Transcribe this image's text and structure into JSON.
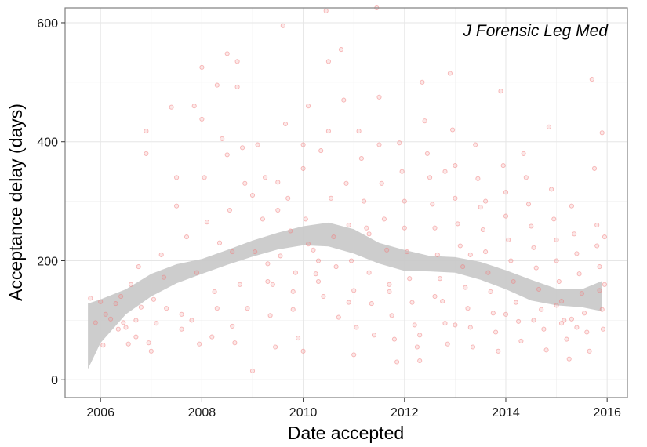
{
  "chart_data": {
    "type": "scatter",
    "annotation": "J Forensic Leg Med",
    "xlabel": "Date accepted",
    "ylabel": "Acceptance delay (days)",
    "xlim": [
      2005.3,
      2016.4
    ],
    "ylim": [
      -30,
      625
    ],
    "x_ticks": [
      2006,
      2008,
      2010,
      2012,
      2014,
      2016
    ],
    "y_ticks": [
      0,
      200,
      400,
      600
    ],
    "grid": true,
    "point_color": "#f08080",
    "smooth_fill": "#c8c8c8",
    "smooth_band": {
      "x": [
        2005.75,
        2006.0,
        2006.5,
        2007.0,
        2007.5,
        2008.0,
        2008.5,
        2009.0,
        2009.5,
        2010.0,
        2010.5,
        2011.0,
        2011.5,
        2012.0,
        2012.5,
        2013.0,
        2013.5,
        2014.0,
        2014.5,
        2015.0,
        2015.5,
        2015.9
      ],
      "lower": [
        18,
        62,
        110,
        140,
        162,
        178,
        193,
        207,
        219,
        226,
        224,
        212,
        195,
        183,
        182,
        180,
        168,
        152,
        133,
        125,
        122,
        115
      ],
      "upper": [
        128,
        135,
        152,
        178,
        194,
        203,
        218,
        234,
        247,
        258,
        264,
        253,
        230,
        218,
        208,
        206,
        198,
        184,
        168,
        153,
        152,
        166
      ]
    },
    "points": [
      [
        2005.8,
        137
      ],
      [
        2005.9,
        96
      ],
      [
        2006.0,
        131
      ],
      [
        2006.05,
        58
      ],
      [
        2006.1,
        110
      ],
      [
        2006.2,
        102
      ],
      [
        2006.3,
        128
      ],
      [
        2006.35,
        85
      ],
      [
        2006.4,
        140
      ],
      [
        2006.45,
        96
      ],
      [
        2006.5,
        88
      ],
      [
        2006.55,
        60
      ],
      [
        2006.6,
        160
      ],
      [
        2006.7,
        72
      ],
      [
        2006.75,
        190
      ],
      [
        2006.8,
        122
      ],
      [
        2006.9,
        418
      ],
      [
        2006.9,
        380
      ],
      [
        2006.95,
        62
      ],
      [
        2007.0,
        48
      ],
      [
        2007.05,
        135
      ],
      [
        2007.1,
        95
      ],
      [
        2007.2,
        210
      ],
      [
        2007.25,
        172
      ],
      [
        2007.3,
        120
      ],
      [
        2007.4,
        458
      ],
      [
        2007.5,
        340
      ],
      [
        2007.5,
        292
      ],
      [
        2007.6,
        85
      ],
      [
        2007.7,
        240
      ],
      [
        2007.8,
        100
      ],
      [
        2007.85,
        460
      ],
      [
        2007.9,
        180
      ],
      [
        2008.0,
        525
      ],
      [
        2008.0,
        438
      ],
      [
        2008.05,
        340
      ],
      [
        2008.1,
        265
      ],
      [
        2008.2,
        72
      ],
      [
        2008.25,
        148
      ],
      [
        2008.3,
        495
      ],
      [
        2008.35,
        230
      ],
      [
        2008.4,
        405
      ],
      [
        2008.5,
        548
      ],
      [
        2008.5,
        378
      ],
      [
        2008.55,
        285
      ],
      [
        2008.6,
        215
      ],
      [
        2008.65,
        62
      ],
      [
        2008.7,
        535
      ],
      [
        2008.7,
        492
      ],
      [
        2008.75,
        160
      ],
      [
        2008.8,
        390
      ],
      [
        2008.85,
        330
      ],
      [
        2008.9,
        120
      ],
      [
        2009.0,
        310
      ],
      [
        2009.05,
        215
      ],
      [
        2009.1,
        395
      ],
      [
        2009.2,
        270
      ],
      [
        2009.25,
        340
      ],
      [
        2009.3,
        195
      ],
      [
        2009.35,
        108
      ],
      [
        2009.4,
        160
      ],
      [
        2009.45,
        55
      ],
      [
        2009.5,
        332
      ],
      [
        2009.5,
        285
      ],
      [
        2009.55,
        208
      ],
      [
        2009.6,
        595
      ],
      [
        2009.65,
        430
      ],
      [
        2009.7,
        305
      ],
      [
        2009.75,
        250
      ],
      [
        2009.8,
        118
      ],
      [
        2009.85,
        180
      ],
      [
        2009.9,
        70
      ],
      [
        2010.0,
        395
      ],
      [
        2010.0,
        355
      ],
      [
        2010.05,
        270
      ],
      [
        2010.1,
        228
      ],
      [
        2010.1,
        460
      ],
      [
        2010.2,
        218
      ],
      [
        2010.25,
        178
      ],
      [
        2010.3,
        165
      ],
      [
        2010.35,
        385
      ],
      [
        2010.4,
        140
      ],
      [
        2010.45,
        620
      ],
      [
        2010.5,
        535
      ],
      [
        2010.5,
        418
      ],
      [
        2010.55,
        305
      ],
      [
        2010.6,
        240
      ],
      [
        2010.65,
        190
      ],
      [
        2010.7,
        105
      ],
      [
        2010.75,
        555
      ],
      [
        2010.8,
        470
      ],
      [
        2010.85,
        330
      ],
      [
        2010.9,
        260
      ],
      [
        2010.95,
        200
      ],
      [
        2011.0,
        150
      ],
      [
        2011.05,
        88
      ],
      [
        2011.1,
        418
      ],
      [
        2011.15,
        372
      ],
      [
        2011.2,
        300
      ],
      [
        2011.25,
        255
      ],
      [
        2011.3,
        180
      ],
      [
        2011.35,
        128
      ],
      [
        2011.4,
        75
      ],
      [
        2011.45,
        625
      ],
      [
        2011.5,
        475
      ],
      [
        2011.5,
        395
      ],
      [
        2011.55,
        330
      ],
      [
        2011.6,
        270
      ],
      [
        2011.65,
        218
      ],
      [
        2011.7,
        160
      ],
      [
        2011.75,
        108
      ],
      [
        2011.8,
        68
      ],
      [
        2011.85,
        30
      ],
      [
        2011.9,
        398
      ],
      [
        2011.95,
        350
      ],
      [
        2012.0,
        300
      ],
      [
        2012.0,
        255
      ],
      [
        2012.05,
        215
      ],
      [
        2012.1,
        170
      ],
      [
        2012.15,
        130
      ],
      [
        2012.2,
        92
      ],
      [
        2012.25,
        55
      ],
      [
        2012.3,
        32
      ],
      [
        2012.35,
        500
      ],
      [
        2012.4,
        435
      ],
      [
        2012.45,
        380
      ],
      [
        2012.5,
        340
      ],
      [
        2012.55,
        295
      ],
      [
        2012.6,
        255
      ],
      [
        2012.65,
        210
      ],
      [
        2012.7,
        170
      ],
      [
        2012.75,
        132
      ],
      [
        2012.8,
        95
      ],
      [
        2012.85,
        60
      ],
      [
        2012.9,
        515
      ],
      [
        2012.95,
        420
      ],
      [
        2013.0,
        360
      ],
      [
        2013.0,
        305
      ],
      [
        2013.05,
        262
      ],
      [
        2013.1,
        225
      ],
      [
        2013.15,
        190
      ],
      [
        2013.2,
        155
      ],
      [
        2013.25,
        120
      ],
      [
        2013.3,
        88
      ],
      [
        2013.35,
        55
      ],
      [
        2013.4,
        395
      ],
      [
        2013.45,
        338
      ],
      [
        2013.5,
        290
      ],
      [
        2013.55,
        252
      ],
      [
        2013.6,
        215
      ],
      [
        2013.65,
        180
      ],
      [
        2013.7,
        148
      ],
      [
        2013.75,
        112
      ],
      [
        2013.8,
        80
      ],
      [
        2013.85,
        48
      ],
      [
        2013.9,
        485
      ],
      [
        2013.95,
        360
      ],
      [
        2014.0,
        315
      ],
      [
        2014.0,
        275
      ],
      [
        2014.05,
        235
      ],
      [
        2014.1,
        200
      ],
      [
        2014.15,
        165
      ],
      [
        2014.2,
        130
      ],
      [
        2014.25,
        98
      ],
      [
        2014.3,
        65
      ],
      [
        2014.35,
        380
      ],
      [
        2014.4,
        340
      ],
      [
        2014.45,
        295
      ],
      [
        2014.5,
        258
      ],
      [
        2014.55,
        222
      ],
      [
        2014.6,
        188
      ],
      [
        2014.65,
        152
      ],
      [
        2014.7,
        118
      ],
      [
        2014.75,
        85
      ],
      [
        2014.8,
        50
      ],
      [
        2014.85,
        425
      ],
      [
        2014.9,
        320
      ],
      [
        2014.95,
        270
      ],
      [
        2015.0,
        235
      ],
      [
        2015.0,
        200
      ],
      [
        2015.05,
        165
      ],
      [
        2015.1,
        132
      ],
      [
        2015.15,
        100
      ],
      [
        2015.2,
        68
      ],
      [
        2015.25,
        35
      ],
      [
        2015.3,
        292
      ],
      [
        2015.35,
        245
      ],
      [
        2015.4,
        212
      ],
      [
        2015.45,
        178
      ],
      [
        2015.5,
        145
      ],
      [
        2015.55,
        112
      ],
      [
        2015.6,
        80
      ],
      [
        2015.65,
        48
      ],
      [
        2015.7,
        505
      ],
      [
        2015.75,
        355
      ],
      [
        2015.8,
        260
      ],
      [
        2015.8,
        225
      ],
      [
        2015.85,
        190
      ],
      [
        2015.85,
        150
      ],
      [
        2015.9,
        118
      ],
      [
        2015.9,
        415
      ],
      [
        2015.92,
        85
      ],
      [
        2015.95,
        240
      ],
      [
        2015.95,
        160
      ],
      [
        2015.1,
        95
      ],
      [
        2015.3,
        102
      ],
      [
        2015.4,
        88
      ],
      [
        2014.55,
        100
      ],
      [
        2013.3,
        210
      ],
      [
        2012.6,
        140
      ],
      [
        2011.7,
        148
      ],
      [
        2010.9,
        130
      ],
      [
        2009.8,
        148
      ],
      [
        2008.6,
        90
      ],
      [
        2007.6,
        110
      ],
      [
        2006.7,
        100
      ],
      [
        2007.95,
        60
      ],
      [
        2009.0,
        15
      ],
      [
        2010.0,
        48
      ],
      [
        2011.0,
        42
      ],
      [
        2012.3,
        75
      ],
      [
        2013.0,
        92
      ],
      [
        2014.0,
        110
      ],
      [
        2015.0,
        125
      ],
      [
        2013.6,
        300
      ],
      [
        2012.8,
        350
      ],
      [
        2011.3,
        245
      ],
      [
        2010.3,
        200
      ],
      [
        2009.3,
        165
      ],
      [
        2008.3,
        120
      ]
    ]
  }
}
